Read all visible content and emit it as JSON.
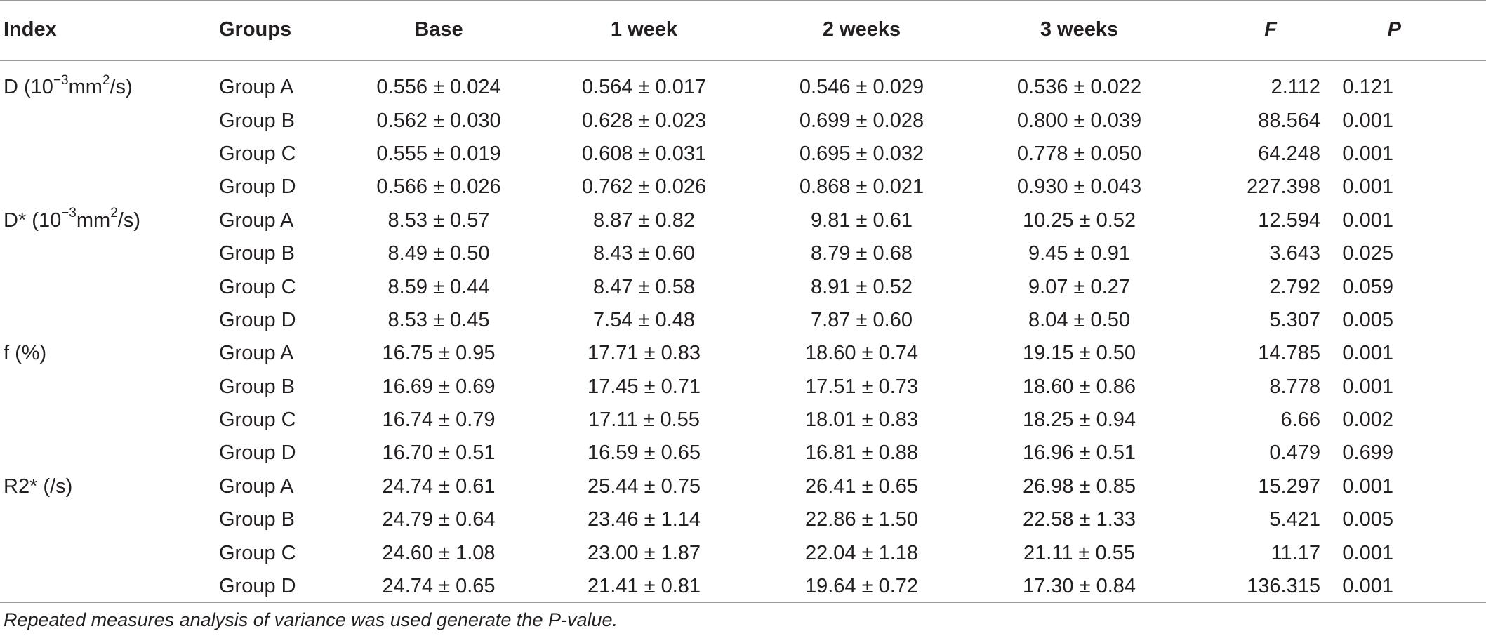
{
  "table": {
    "headers": {
      "index": "Index",
      "groups": "Groups",
      "base": "Base",
      "week1": "1 week",
      "week2": "2 weeks",
      "week3": "3 weeks",
      "f": "F",
      "p": "P"
    },
    "index_labels": {
      "D": {
        "prefix": "D (10",
        "exp1": "−3",
        "mid": "mm",
        "exp2": "2",
        "suffix": "/s)"
      },
      "Dstar": {
        "prefix": "D* (10",
        "exp1": "−3",
        "mid": "mm",
        "exp2": "2",
        "suffix": "/s)"
      },
      "f": "f (%)",
      "R2star": "R2* (/s)"
    },
    "rows": [
      {
        "group": "Group A",
        "base": "0.556 ± 0.024",
        "w1": "0.564 ± 0.017",
        "w2": "0.546 ± 0.029",
        "w3": "0.536 ± 0.022",
        "f": "2.112",
        "p": "0.121"
      },
      {
        "group": "Group B",
        "base": "0.562 ± 0.030",
        "w1": "0.628 ± 0.023",
        "w2": "0.699 ± 0.028",
        "w3": "0.800 ± 0.039",
        "f": "88.564",
        "p": "0.001"
      },
      {
        "group": "Group C",
        "base": "0.555 ± 0.019",
        "w1": "0.608 ± 0.031",
        "w2": "0.695 ± 0.032",
        "w3": "0.778 ± 0.050",
        "f": "64.248",
        "p": "0.001"
      },
      {
        "group": "Group D",
        "base": "0.566 ± 0.026",
        "w1": "0.762 ± 0.026",
        "w2": "0.868 ± 0.021",
        "w3": "0.930 ± 0.043",
        "f": "227.398",
        "p": "0.001"
      },
      {
        "group": "Group A",
        "base": "8.53 ± 0.57",
        "w1": "8.87 ± 0.82",
        "w2": "9.81 ± 0.61",
        "w3": "10.25 ± 0.52",
        "f": "12.594",
        "p": "0.001"
      },
      {
        "group": "Group B",
        "base": "8.49 ± 0.50",
        "w1": "8.43 ± 0.60",
        "w2": "8.79 ± 0.68",
        "w3": "9.45 ± 0.91",
        "f": "3.643",
        "p": "0.025"
      },
      {
        "group": "Group C",
        "base": "8.59 ± 0.44",
        "w1": "8.47 ± 0.58",
        "w2": "8.91 ± 0.52",
        "w3": "9.07 ± 0.27",
        "f": "2.792",
        "p": "0.059"
      },
      {
        "group": "Group D",
        "base": "8.53 ± 0.45",
        "w1": "7.54 ± 0.48",
        "w2": "7.87 ± 0.60",
        "w3": "8.04 ± 0.50",
        "f": "5.307",
        "p": "0.005"
      },
      {
        "group": "Group A",
        "base": "16.75 ± 0.95",
        "w1": "17.71 ± 0.83",
        "w2": "18.60 ± 0.74",
        "w3": "19.15 ± 0.50",
        "f": "14.785",
        "p": "0.001"
      },
      {
        "group": "Group B",
        "base": "16.69 ± 0.69",
        "w1": "17.45 ± 0.71",
        "w2": "17.51 ± 0.73",
        "w3": "18.60 ± 0.86",
        "f": "8.778",
        "p": "0.001"
      },
      {
        "group": "Group C",
        "base": "16.74 ± 0.79",
        "w1": "17.11 ± 0.55",
        "w2": "18.01 ± 0.83",
        "w3": "18.25 ± 0.94",
        "f": "6.66",
        "p": "0.002"
      },
      {
        "group": "Group D",
        "base": "16.70 ± 0.51",
        "w1": "16.59 ± 0.65",
        "w2": "16.81 ± 0.88",
        "w3": "16.96 ± 0.51",
        "f": "0.479",
        "p": "0.699"
      },
      {
        "group": "Group A",
        "base": "24.74 ± 0.61",
        "w1": "25.44 ± 0.75",
        "w2": "26.41 ± 0.65",
        "w3": "26.98 ± 0.85",
        "f": "15.297",
        "p": "0.001"
      },
      {
        "group": "Group B",
        "base": "24.79 ± 0.64",
        "w1": "23.46 ± 1.14",
        "w2": "22.86 ± 1.50",
        "w3": "22.58 ± 1.33",
        "f": "5.421",
        "p": "0.005"
      },
      {
        "group": "Group C",
        "base": "24.60 ± 1.08",
        "w1": "23.00 ± 1.87",
        "w2": "22.04 ± 1.18",
        "w3": "21.11 ± 0.55",
        "f": "11.17",
        "p": "0.001"
      },
      {
        "group": "Group D",
        "base": "24.74 ± 0.65",
        "w1": "21.41 ± 0.81",
        "w2": "19.64 ± 0.72",
        "w3": "17.30 ± 0.84",
        "f": "136.315",
        "p": "0.001"
      }
    ]
  },
  "footnote": "Repeated measures analysis of variance was used generate the P-value."
}
